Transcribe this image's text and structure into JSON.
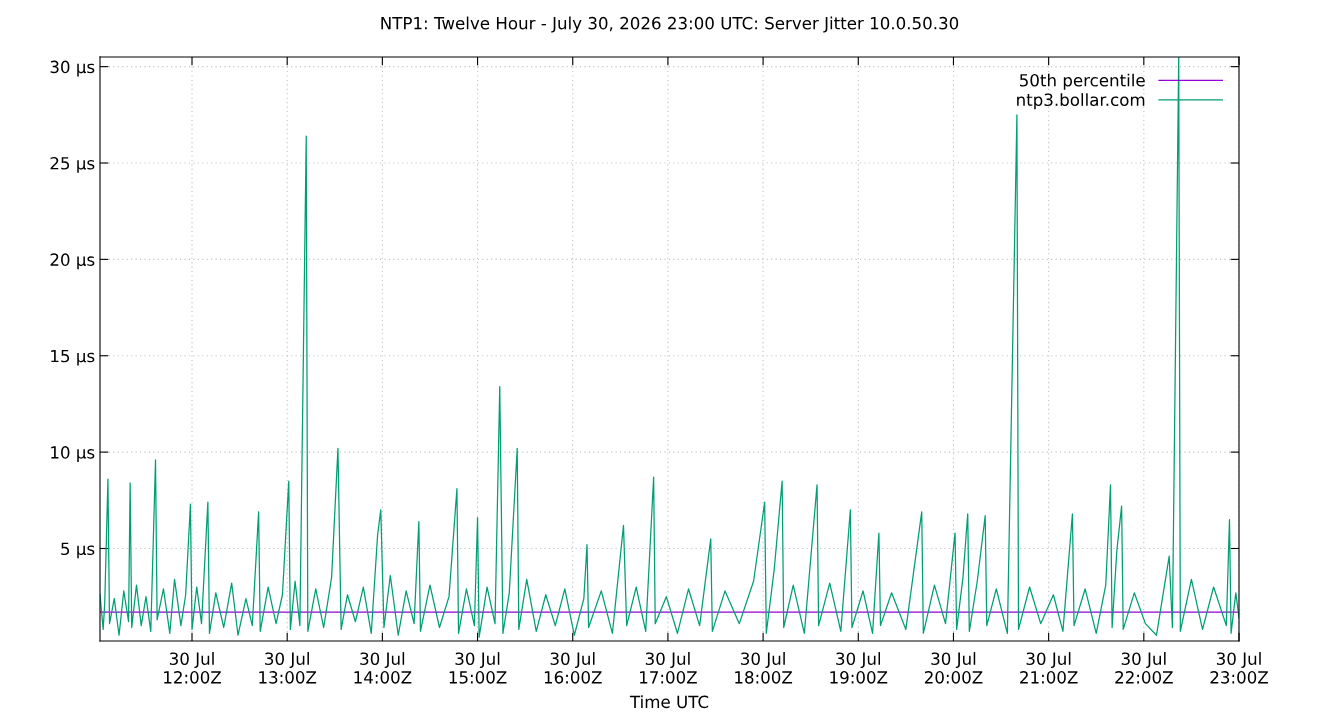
{
  "chart_data": {
    "type": "line",
    "title": "NTP1: Twelve Hour - July 30, 2026 23:00 UTC: Server Jitter 10.0.50.30",
    "xlabel": "Time UTC",
    "xlim": [
      "2026-07-30T11:02",
      "2026-07-30T23:00"
    ],
    "xticks": [
      {
        "value": "2026-07-30T12:00",
        "label": "30 Jul\n12:00Z"
      },
      {
        "value": "2026-07-30T13:00",
        "label": "30 Jul\n13:00Z"
      },
      {
        "value": "2026-07-30T14:00",
        "label": "30 Jul\n14:00Z"
      },
      {
        "value": "2026-07-30T15:00",
        "label": "30 Jul\n15:00Z"
      },
      {
        "value": "2026-07-30T16:00",
        "label": "30 Jul\n16:00Z"
      },
      {
        "value": "2026-07-30T17:00",
        "label": "30 Jul\n17:00Z"
      },
      {
        "value": "2026-07-30T18:00",
        "label": "30 Jul\n18:00Z"
      },
      {
        "value": "2026-07-30T19:00",
        "label": "30 Jul\n19:00Z"
      },
      {
        "value": "2026-07-30T20:00",
        "label": "30 Jul\n20:00Z"
      },
      {
        "value": "2026-07-30T21:00",
        "label": "30 Jul\n21:00Z"
      },
      {
        "value": "2026-07-30T22:00",
        "label": "30 Jul\n22:00Z"
      },
      {
        "value": "2026-07-30T23:00",
        "label": "30 Jul\n23:00Z"
      }
    ],
    "ylim": [
      0.2,
      30.5
    ],
    "yticks": [
      {
        "value": 5,
        "label": "5 µs"
      },
      {
        "value": 10,
        "label": "10 µs"
      },
      {
        "value": 15,
        "label": "15 µs"
      },
      {
        "value": 20,
        "label": "20 µs"
      },
      {
        "value": 25,
        "label": "25 µs"
      },
      {
        "value": 30,
        "label": "30 µs"
      }
    ],
    "grid": true,
    "legend": "top right",
    "line_style": "solid",
    "series": [
      {
        "name": "50th percentile",
        "color": "#9400d3",
        "x": [
          "2026-07-30T11:02",
          "2026-07-30T23:00"
        ],
        "values": [
          1.7,
          1.7
        ]
      },
      {
        "name": "ntp3.bollar.com",
        "color": "#009e73",
        "x": [
          "2026-07-30T11:02",
          "2026-07-30T11:04",
          "2026-07-30T11:05",
          "2026-07-30T11:07",
          "2026-07-30T11:08",
          "2026-07-30T11:11",
          "2026-07-30T11:14",
          "2026-07-30T11:17",
          "2026-07-30T11:20",
          "2026-07-30T11:21",
          "2026-07-30T11:22",
          "2026-07-30T11:25",
          "2026-07-30T11:28",
          "2026-07-30T11:31",
          "2026-07-30T11:34",
          "2026-07-30T11:37",
          "2026-07-30T11:38",
          "2026-07-30T11:42",
          "2026-07-30T11:46",
          "2026-07-30T11:49",
          "2026-07-30T11:53",
          "2026-07-30T11:56",
          "2026-07-30T11:59",
          "2026-07-30T12:00",
          "2026-07-30T12:03",
          "2026-07-30T12:06",
          "2026-07-30T12:10",
          "2026-07-30T12:11",
          "2026-07-30T12:15",
          "2026-07-30T12:20",
          "2026-07-30T12:25",
          "2026-07-30T12:29",
          "2026-07-30T12:34",
          "2026-07-30T12:38",
          "2026-07-30T12:42",
          "2026-07-30T12:43",
          "2026-07-30T12:48",
          "2026-07-30T12:53",
          "2026-07-30T12:57",
          "2026-07-30T13:01",
          "2026-07-30T13:02",
          "2026-07-30T13:05",
          "2026-07-30T13:08",
          "2026-07-30T13:12",
          "2026-07-30T13:13",
          "2026-07-30T13:18",
          "2026-07-30T13:23",
          "2026-07-30T13:28",
          "2026-07-30T13:32",
          "2026-07-30T13:34",
          "2026-07-30T13:38",
          "2026-07-30T13:43",
          "2026-07-30T13:48",
          "2026-07-30T13:53",
          "2026-07-30T13:57",
          "2026-07-30T13:59",
          "2026-07-30T14:01",
          "2026-07-30T14:05",
          "2026-07-30T14:10",
          "2026-07-30T14:15",
          "2026-07-30T14:20",
          "2026-07-30T14:23",
          "2026-07-30T14:24",
          "2026-07-30T14:30",
          "2026-07-30T14:36",
          "2026-07-30T14:42",
          "2026-07-30T14:47",
          "2026-07-30T14:48",
          "2026-07-30T14:53",
          "2026-07-30T14:58",
          "2026-07-30T15:00",
          "2026-07-30T15:01",
          "2026-07-30T15:06",
          "2026-07-30T15:11",
          "2026-07-30T15:14",
          "2026-07-30T15:16",
          "2026-07-30T15:20",
          "2026-07-30T15:25",
          "2026-07-30T15:26",
          "2026-07-30T15:31",
          "2026-07-30T15:37",
          "2026-07-30T15:43",
          "2026-07-30T15:49",
          "2026-07-30T15:55",
          "2026-07-30T16:01",
          "2026-07-30T16:07",
          "2026-07-30T16:09",
          "2026-07-30T16:10",
          "2026-07-30T16:18",
          "2026-07-30T16:25",
          "2026-07-30T16:32",
          "2026-07-30T16:34",
          "2026-07-30T16:40",
          "2026-07-30T16:46",
          "2026-07-30T16:51",
          "2026-07-30T16:52",
          "2026-07-30T16:59",
          "2026-07-30T17:06",
          "2026-07-30T17:13",
          "2026-07-30T17:20",
          "2026-07-30T17:27",
          "2026-07-30T17:28",
          "2026-07-30T17:36",
          "2026-07-30T17:45",
          "2026-07-30T17:54",
          "2026-07-30T18:01",
          "2026-07-30T18:02",
          "2026-07-30T18:07",
          "2026-07-30T18:12",
          "2026-07-30T18:13",
          "2026-07-30T18:19",
          "2026-07-30T18:26",
          "2026-07-30T18:34",
          "2026-07-30T18:35",
          "2026-07-30T18:42",
          "2026-07-30T18:49",
          "2026-07-30T18:55",
          "2026-07-30T18:56",
          "2026-07-30T19:03",
          "2026-07-30T19:09",
          "2026-07-30T19:13",
          "2026-07-30T19:14",
          "2026-07-30T19:21",
          "2026-07-30T19:30",
          "2026-07-30T19:40",
          "2026-07-30T19:41",
          "2026-07-30T19:48",
          "2026-07-30T19:55",
          "2026-07-30T20:01",
          "2026-07-30T20:02",
          "2026-07-30T20:06",
          "2026-07-30T20:09",
          "2026-07-30T20:10",
          "2026-07-30T20:15",
          "2026-07-30T20:20",
          "2026-07-30T20:21",
          "2026-07-30T20:27",
          "2026-07-30T20:34",
          "2026-07-30T20:40",
          "2026-07-30T20:41",
          "2026-07-30T20:48",
          "2026-07-30T20:55",
          "2026-07-30T21:03",
          "2026-07-30T21:09",
          "2026-07-30T21:15",
          "2026-07-30T21:16",
          "2026-07-30T21:23",
          "2026-07-30T21:30",
          "2026-07-30T21:36",
          "2026-07-30T21:39",
          "2026-07-30T21:40",
          "2026-07-30T21:43",
          "2026-07-30T21:46",
          "2026-07-30T21:47",
          "2026-07-30T21:54",
          "2026-07-30T22:01",
          "2026-07-30T22:08",
          "2026-07-30T22:16",
          "2026-07-30T22:18",
          "2026-07-30T22:22",
          "2026-07-30T22:23",
          "2026-07-30T22:30",
          "2026-07-30T22:37",
          "2026-07-30T22:44",
          "2026-07-30T22:52",
          "2026-07-30T22:54",
          "2026-07-30T22:55",
          "2026-07-30T22:58",
          "2026-07-30T23:00"
        ],
        "values": [
          2.6,
          0.8,
          2.2,
          8.6,
          1.1,
          2.4,
          0.5,
          2.8,
          1.2,
          8.4,
          0.9,
          3.1,
          1.0,
          2.5,
          0.7,
          9.6,
          1.3,
          2.9,
          0.6,
          3.4,
          1.0,
          2.6,
          7.3,
          0.8,
          3.0,
          1.1,
          7.4,
          0.6,
          2.7,
          0.9,
          3.2,
          0.5,
          2.4,
          1.0,
          6.9,
          0.7,
          3.0,
          1.1,
          2.6,
          8.5,
          0.8,
          3.3,
          1.0,
          26.4,
          0.7,
          2.9,
          0.9,
          3.5,
          10.2,
          0.8,
          2.6,
          1.2,
          3.0,
          0.6,
          5.7,
          7.0,
          0.9,
          3.6,
          0.5,
          2.8,
          1.1,
          6.4,
          0.7,
          3.1,
          0.9,
          2.5,
          8.1,
          0.6,
          2.9,
          1.0,
          6.6,
          0.4,
          3.0,
          1.1,
          13.4,
          0.6,
          2.7,
          10.2,
          0.8,
          3.4,
          0.7,
          2.6,
          1.0,
          2.9,
          0.5,
          2.4,
          5.2,
          0.9,
          2.8,
          0.6,
          6.2,
          1.0,
          3.0,
          0.7,
          8.7,
          1.1,
          2.5,
          0.6,
          2.9,
          1.0,
          5.5,
          0.7,
          2.8,
          1.1,
          3.3,
          7.4,
          0.6,
          3.9,
          8.5,
          0.9,
          3.1,
          0.6,
          8.3,
          1.0,
          3.2,
          0.7,
          7.0,
          0.9,
          2.8,
          0.6,
          5.8,
          1.0,
          2.7,
          0.8,
          6.9,
          0.6,
          3.1,
          1.1,
          5.8,
          0.8,
          3.5,
          6.8,
          0.7,
          3.3,
          6.7,
          1.0,
          2.9,
          0.6,
          27.5,
          0.8,
          3.0,
          1.1,
          2.6,
          0.7,
          6.8,
          1.0,
          2.9,
          0.6,
          3.1,
          8.3,
          0.9,
          4.9,
          7.2,
          0.8,
          2.7,
          1.1,
          0.5,
          4.6,
          0.9,
          30.5,
          0.7,
          3.4,
          0.8,
          3.0,
          1.0,
          6.5,
          0.6,
          2.7,
          1.4
        ]
      }
    ]
  }
}
